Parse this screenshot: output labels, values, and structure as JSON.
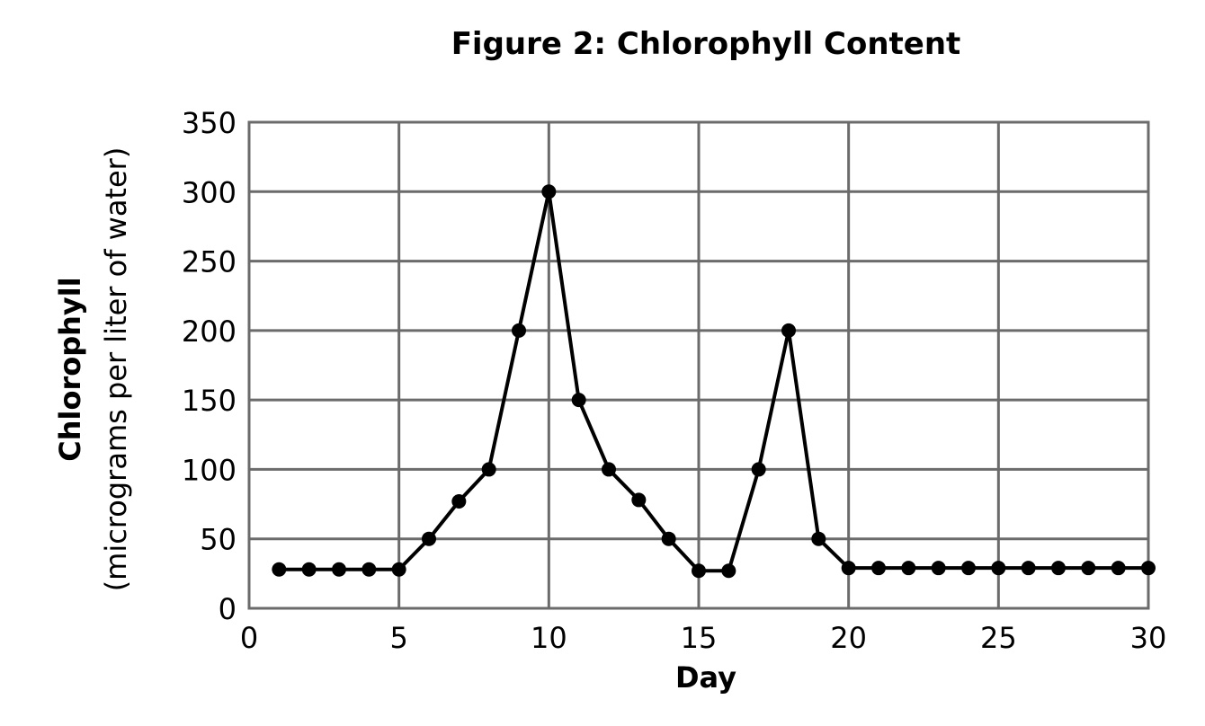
{
  "chart_data": {
    "type": "line",
    "title": "Figure 2: Chlorophyll Content",
    "xlabel": "Day",
    "ylabel": "Chlorophyll",
    "ylabel_sub": "(micrograms per liter of water)",
    "xlim": [
      0,
      30
    ],
    "ylim": [
      0,
      350
    ],
    "xticks": [
      0,
      5,
      10,
      15,
      20,
      25,
      30
    ],
    "yticks": [
      0,
      50,
      100,
      150,
      200,
      250,
      300,
      350
    ],
    "grid": true,
    "series": [
      {
        "x": [
          1,
          2,
          3,
          4,
          5,
          6,
          7,
          8,
          9,
          10,
          11,
          12,
          13,
          14,
          15,
          16,
          17,
          18,
          19,
          20,
          21,
          22,
          23,
          24,
          25,
          26,
          27,
          28,
          29,
          30
        ],
        "values": [
          28,
          28,
          28,
          28,
          28,
          50,
          77,
          100,
          200,
          300,
          150,
          100,
          78,
          50,
          27,
          27,
          100,
          200,
          50,
          29,
          29,
          29,
          29,
          29,
          29,
          29,
          29,
          29,
          29,
          29
        ]
      }
    ],
    "colors": {
      "line": "#000000",
      "grid": "#6b6b6b",
      "background": "#ffffff"
    }
  }
}
